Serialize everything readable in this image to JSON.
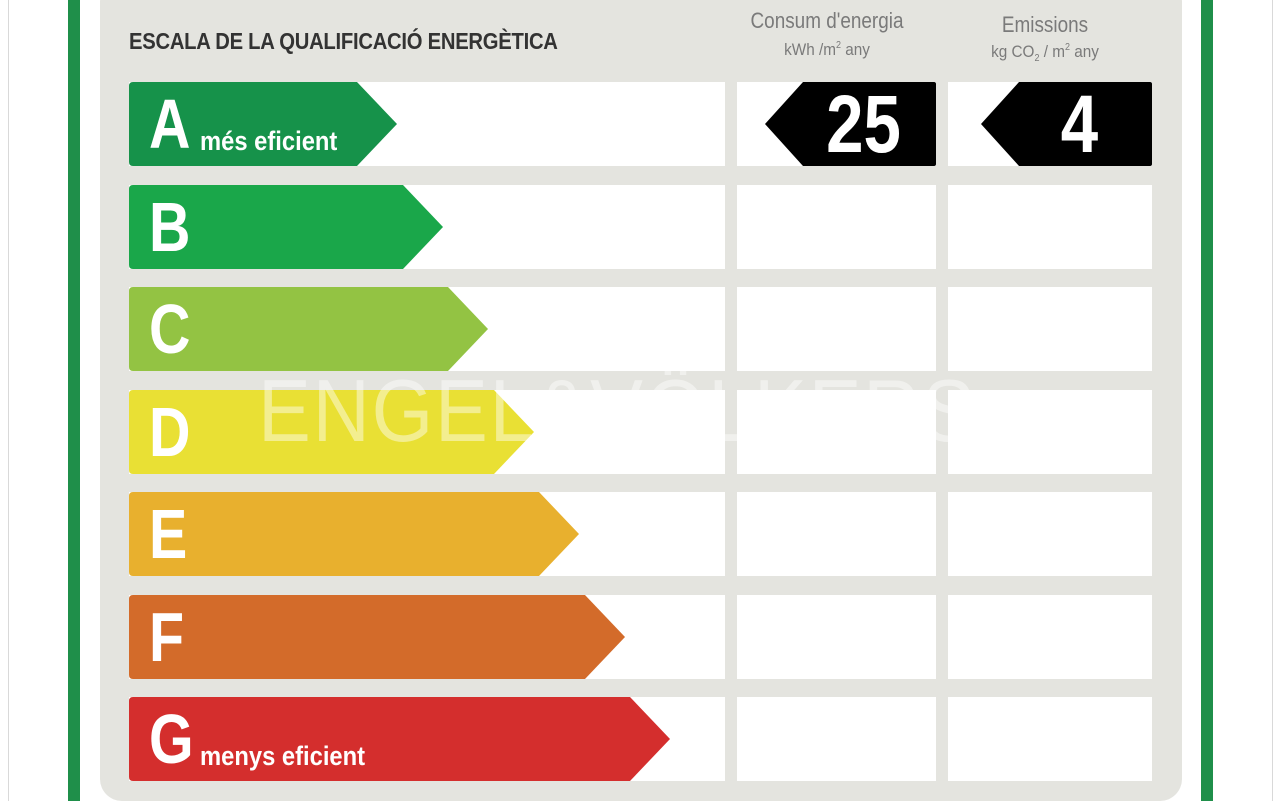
{
  "title": "ESCALA DE LA QUALIFICACIÓ ENERGÈTICA",
  "columns": {
    "consumption": {
      "title": "Consum d'energia",
      "unit_pre": "kWh /m",
      "unit_sup": "2",
      "unit_post": " any"
    },
    "emissions": {
      "title": "Emissions",
      "unit_pre": "kg CO",
      "unit_sub": "2",
      "unit_mid": " / m",
      "unit_sup": "2",
      "unit_post": " any"
    }
  },
  "ratings": [
    {
      "letter": "A",
      "label": "més eficient",
      "color": "#16924a"
    },
    {
      "letter": "B",
      "label": "",
      "color": "#1aa74a"
    },
    {
      "letter": "C",
      "label": "",
      "color": "#93c343"
    },
    {
      "letter": "D",
      "label": "",
      "color": "#e9e034"
    },
    {
      "letter": "E",
      "label": "",
      "color": "#e8b02e"
    },
    {
      "letter": "F",
      "label": "",
      "color": "#d36b2a"
    },
    {
      "letter": "G",
      "label": "menys eficient",
      "color": "#d42e2d"
    }
  ],
  "current": {
    "rating": "A",
    "consumption_value": "25",
    "emissions_value": "4"
  },
  "watermark": "ENGEL&VÖLKERS"
}
